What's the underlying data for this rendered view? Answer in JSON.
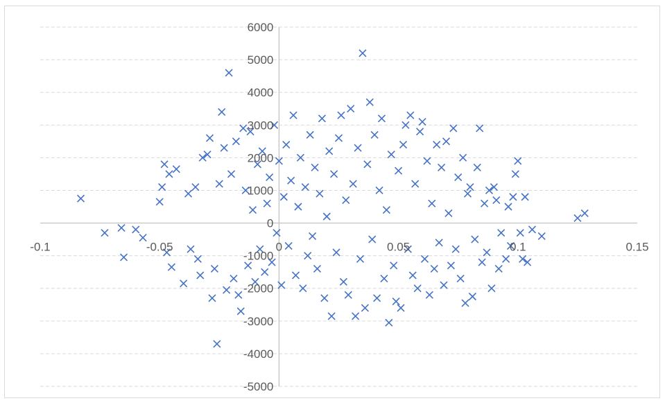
{
  "chart_data": {
    "type": "scatter",
    "title": "",
    "xlabel": "",
    "ylabel": "",
    "xlim": [
      -0.1,
      0.15
    ],
    "ylim": [
      -5000,
      6000
    ],
    "x_ticks": [
      "-0.1",
      "-0.05",
      "0",
      "0.05",
      "0.1",
      "0.15"
    ],
    "y_ticks": [
      "6000",
      "5000",
      "4000",
      "3000",
      "2000",
      "1000",
      "0",
      "-1000",
      "-2000",
      "-3000",
      "-4000",
      "-5000"
    ],
    "grid": "horizontal-dashed",
    "legend": "none",
    "marker": "x",
    "series_color": "#4472c4",
    "series": [
      {
        "points": [
          [
            -0.083,
            750
          ],
          [
            -0.073,
            -300
          ],
          [
            -0.066,
            -150
          ],
          [
            -0.065,
            -1050
          ],
          [
            -0.06,
            -200
          ],
          [
            -0.057,
            -450
          ],
          [
            -0.05,
            650
          ],
          [
            -0.049,
            1100
          ],
          [
            -0.048,
            1800
          ],
          [
            -0.047,
            -900
          ],
          [
            -0.046,
            1500
          ],
          [
            -0.045,
            -1350
          ],
          [
            -0.043,
            1650
          ],
          [
            -0.04,
            -1850
          ],
          [
            -0.038,
            900
          ],
          [
            -0.037,
            -800
          ],
          [
            -0.035,
            1100
          ],
          [
            -0.034,
            -1100
          ],
          [
            -0.033,
            -1600
          ],
          [
            -0.032,
            2000
          ],
          [
            -0.03,
            2100
          ],
          [
            -0.029,
            2600
          ],
          [
            -0.028,
            -2300
          ],
          [
            -0.027,
            -1400
          ],
          [
            -0.026,
            -3700
          ],
          [
            -0.025,
            1200
          ],
          [
            -0.024,
            3400
          ],
          [
            -0.023,
            2300
          ],
          [
            -0.022,
            -2050
          ],
          [
            -0.021,
            4600
          ],
          [
            -0.02,
            1500
          ],
          [
            -0.019,
            -1700
          ],
          [
            -0.018,
            2500
          ],
          [
            -0.017,
            -2200
          ],
          [
            -0.016,
            -2700
          ],
          [
            -0.015,
            2900
          ],
          [
            -0.014,
            1000
          ],
          [
            -0.013,
            -1300
          ],
          [
            -0.012,
            2800
          ],
          [
            -0.011,
            400
          ],
          [
            -0.01,
            -1800
          ],
          [
            -0.009,
            1800
          ],
          [
            -0.008,
            -800
          ],
          [
            -0.007,
            2200
          ],
          [
            -0.006,
            -1500
          ],
          [
            -0.005,
            600
          ],
          [
            -0.004,
            1400
          ],
          [
            -0.003,
            -1200
          ],
          [
            -0.002,
            3000
          ],
          [
            -0.001,
            -300
          ],
          [
            0.0,
            1900
          ],
          [
            0.001,
            -1900
          ],
          [
            0.002,
            800
          ],
          [
            0.003,
            2400
          ],
          [
            0.004,
            -700
          ],
          [
            0.005,
            1300
          ],
          [
            0.006,
            3300
          ],
          [
            0.007,
            -1600
          ],
          [
            0.008,
            500
          ],
          [
            0.009,
            2000
          ],
          [
            0.01,
            -2000
          ],
          [
            0.011,
            1100
          ],
          [
            0.012,
            -1000
          ],
          [
            0.013,
            2700
          ],
          [
            0.014,
            -400
          ],
          [
            0.015,
            1700
          ],
          [
            0.016,
            -1400
          ],
          [
            0.017,
            900
          ],
          [
            0.018,
            3200
          ],
          [
            0.019,
            -2300
          ],
          [
            0.02,
            200
          ],
          [
            0.021,
            2200
          ],
          [
            0.022,
            -2850
          ],
          [
            0.023,
            1500
          ],
          [
            0.024,
            -900
          ],
          [
            0.025,
            2600
          ],
          [
            0.026,
            3300
          ],
          [
            0.027,
            -1800
          ],
          [
            0.028,
            700
          ],
          [
            0.029,
            -2200
          ],
          [
            0.03,
            3500
          ],
          [
            0.031,
            1200
          ],
          [
            0.032,
            -2850
          ],
          [
            0.033,
            2300
          ],
          [
            0.034,
            -1100
          ],
          [
            0.035,
            5200
          ],
          [
            0.036,
            -2600
          ],
          [
            0.037,
            1800
          ],
          [
            0.038,
            3700
          ],
          [
            0.039,
            -500
          ],
          [
            0.04,
            2700
          ],
          [
            0.041,
            -2300
          ],
          [
            0.042,
            1000
          ],
          [
            0.043,
            3200
          ],
          [
            0.044,
            -1700
          ],
          [
            0.045,
            400
          ],
          [
            0.046,
            -3050
          ],
          [
            0.047,
            2100
          ],
          [
            0.048,
            -1300
          ],
          [
            0.049,
            -2400
          ],
          [
            0.05,
            1600
          ],
          [
            0.051,
            -2600
          ],
          [
            0.052,
            2400
          ],
          [
            0.053,
            3000
          ],
          [
            0.054,
            -800
          ],
          [
            0.055,
            3300
          ],
          [
            0.056,
            -1600
          ],
          [
            0.057,
            1200
          ],
          [
            0.058,
            -2000
          ],
          [
            0.059,
            2800
          ],
          [
            0.06,
            3100
          ],
          [
            0.061,
            -1100
          ],
          [
            0.062,
            1900
          ],
          [
            0.063,
            -2200
          ],
          [
            0.064,
            600
          ],
          [
            0.065,
            -1400
          ],
          [
            0.066,
            2400
          ],
          [
            0.067,
            -600
          ],
          [
            0.068,
            1700
          ],
          [
            0.069,
            -1900
          ],
          [
            0.07,
            2500
          ],
          [
            0.071,
            300
          ],
          [
            0.072,
            -1300
          ],
          [
            0.073,
            2900
          ],
          [
            0.074,
            -800
          ],
          [
            0.075,
            1400
          ],
          [
            0.076,
            -1700
          ],
          [
            0.077,
            2000
          ],
          [
            0.078,
            -2450
          ],
          [
            0.079,
            900
          ],
          [
            0.08,
            1100
          ],
          [
            0.081,
            -2250
          ],
          [
            0.082,
            -500
          ],
          [
            0.083,
            1700
          ],
          [
            0.084,
            2900
          ],
          [
            0.085,
            -1200
          ],
          [
            0.086,
            600
          ],
          [
            0.087,
            -900
          ],
          [
            0.088,
            1000
          ],
          [
            0.089,
            -2000
          ],
          [
            0.09,
            1100
          ],
          [
            0.091,
            700
          ],
          [
            0.092,
            -1400
          ],
          [
            0.093,
            -300
          ],
          [
            0.095,
            -1100
          ],
          [
            0.096,
            500
          ],
          [
            0.097,
            -700
          ],
          [
            0.098,
            800
          ],
          [
            0.099,
            1500
          ],
          [
            0.1,
            1900
          ],
          [
            0.101,
            -300
          ],
          [
            0.102,
            -1100
          ],
          [
            0.103,
            800
          ],
          [
            0.104,
            -1200
          ],
          [
            0.106,
            -200
          ],
          [
            0.11,
            -400
          ],
          [
            0.125,
            150
          ],
          [
            0.128,
            300
          ]
        ]
      }
    ]
  }
}
